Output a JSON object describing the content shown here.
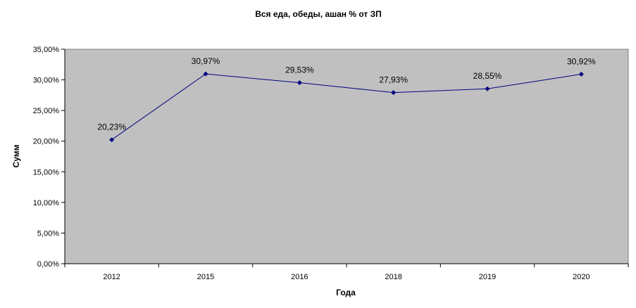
{
  "chart_data": {
    "type": "line",
    "title": "Вся еда, обеды, ашан % от ЗП",
    "xlabel": "Года",
    "ylabel": "Сумм",
    "categories": [
      "2012",
      "2015",
      "2016",
      "2018",
      "2019",
      "2020"
    ],
    "series": [
      {
        "values": [
          20.23,
          30.97,
          29.53,
          27.93,
          28.55,
          30.92
        ],
        "labels": [
          "20,23%",
          "30,97%",
          "29,53%",
          "27,93%",
          "28,55%",
          "30,92%"
        ]
      }
    ],
    "ylim": [
      0,
      35
    ],
    "ytick_values": [
      0,
      5,
      10,
      15,
      20,
      25,
      30,
      35
    ],
    "ytick_labels": [
      "0,00%",
      "5,00%",
      "10,00%",
      "15,00%",
      "20,00%",
      "25,00%",
      "30,00%",
      "35,00%"
    ],
    "grid": false,
    "legend": "none",
    "colors": {
      "plot_background": "#c0c0c0",
      "line": "#000080",
      "marker": "#000080"
    }
  }
}
